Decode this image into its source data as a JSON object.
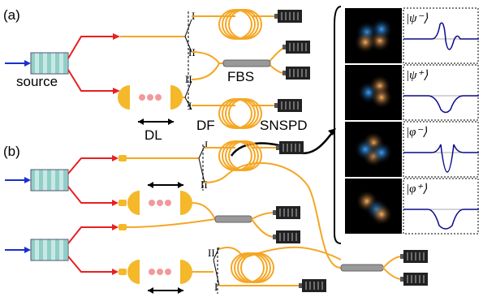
{
  "panel_labels": [
    "(a)",
    "(b)"
  ],
  "labels": {
    "source": "source",
    "delay_line": "DL",
    "beam_splitter": "FBS",
    "fiber": "DF",
    "detector": "SNSPD"
  },
  "ports": [
    "I",
    "II"
  ],
  "states": [
    "|ψ⁻⟩",
    "|ψ⁺⟩",
    "|φ⁻⟩",
    "|φ⁺⟩"
  ]
}
